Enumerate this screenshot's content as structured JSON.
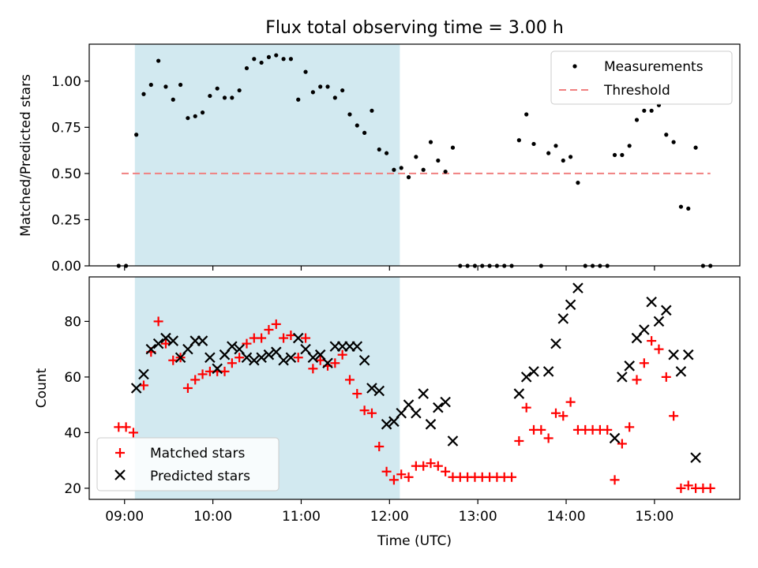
{
  "chart_data": [
    {
      "type": "scatter",
      "title": "Flux total observing time = 3.00 h",
      "xlabel": "",
      "ylabel": "Matched/Predicted stars",
      "xlim": [
        "08:36",
        "15:58"
      ],
      "ylim": [
        0,
        1.2
      ],
      "yticks": [
        0.0,
        0.25,
        0.5,
        0.75,
        1.0
      ],
      "ytick_labels": [
        "0.00",
        "0.25",
        "0.50",
        "0.75",
        "1.00"
      ],
      "shaded_span": [
        "09:07",
        "12:07"
      ],
      "shade_color": "#d2e9f0",
      "legend": {
        "position": "top-right",
        "entries": [
          "Measurements",
          "Threshold"
        ]
      },
      "threshold": {
        "name": "Threshold",
        "value": 0.5,
        "x_range": [
          "08:58",
          "15:38"
        ],
        "color": "#f08080"
      },
      "series": [
        {
          "name": "Measurements",
          "color": "#000000",
          "points": [
            [
              "08:56",
              0.0
            ],
            [
              "09:01",
              0.0
            ],
            [
              "09:08",
              0.71
            ],
            [
              "09:13",
              0.93
            ],
            [
              "09:18",
              0.98
            ],
            [
              "09:23",
              1.11
            ],
            [
              "09:28",
              0.97
            ],
            [
              "09:33",
              0.9
            ],
            [
              "09:38",
              0.98
            ],
            [
              "09:43",
              0.8
            ],
            [
              "09:48",
              0.81
            ],
            [
              "09:53",
              0.83
            ],
            [
              "09:58",
              0.92
            ],
            [
              "10:03",
              0.96
            ],
            [
              "10:08",
              0.91
            ],
            [
              "10:13",
              0.91
            ],
            [
              "10:18",
              0.95
            ],
            [
              "10:23",
              1.07
            ],
            [
              "10:28",
              1.12
            ],
            [
              "10:33",
              1.1
            ],
            [
              "10:38",
              1.13
            ],
            [
              "10:43",
              1.14
            ],
            [
              "10:48",
              1.12
            ],
            [
              "10:53",
              1.12
            ],
            [
              "10:58",
              0.9
            ],
            [
              "11:03",
              1.05
            ],
            [
              "11:08",
              0.94
            ],
            [
              "11:13",
              0.97
            ],
            [
              "11:18",
              0.97
            ],
            [
              "11:23",
              0.91
            ],
            [
              "11:28",
              0.95
            ],
            [
              "11:33",
              0.82
            ],
            [
              "11:38",
              0.76
            ],
            [
              "11:43",
              0.72
            ],
            [
              "11:48",
              0.84
            ],
            [
              "11:53",
              0.63
            ],
            [
              "11:58",
              0.61
            ],
            [
              "12:03",
              0.52
            ],
            [
              "12:08",
              0.53
            ],
            [
              "12:13",
              0.48
            ],
            [
              "12:18",
              0.59
            ],
            [
              "12:23",
              0.52
            ],
            [
              "12:28",
              0.67
            ],
            [
              "12:33",
              0.57
            ],
            [
              "12:38",
              0.51
            ],
            [
              "12:43",
              0.64
            ],
            [
              "12:48",
              0.0
            ],
            [
              "12:53",
              0.0
            ],
            [
              "12:58",
              0.0
            ],
            [
              "13:03",
              0.0
            ],
            [
              "13:08",
              0.0
            ],
            [
              "13:13",
              0.0
            ],
            [
              "13:18",
              0.0
            ],
            [
              "13:23",
              0.0
            ],
            [
              "13:28",
              0.68
            ],
            [
              "13:33",
              0.82
            ],
            [
              "13:38",
              0.66
            ],
            [
              "13:43",
              0.0
            ],
            [
              "13:48",
              0.61
            ],
            [
              "13:53",
              0.65
            ],
            [
              "13:58",
              0.57
            ],
            [
              "14:03",
              0.59
            ],
            [
              "14:08",
              0.45
            ],
            [
              "14:13",
              0.0
            ],
            [
              "14:18",
              0.0
            ],
            [
              "14:23",
              0.0
            ],
            [
              "14:28",
              0.0
            ],
            [
              "14:33",
              0.6
            ],
            [
              "14:38",
              0.6
            ],
            [
              "14:43",
              0.65
            ],
            [
              "14:48",
              0.79
            ],
            [
              "14:53",
              0.84
            ],
            [
              "14:58",
              0.84
            ],
            [
              "15:03",
              0.87
            ],
            [
              "15:08",
              0.71
            ],
            [
              "15:13",
              0.67
            ],
            [
              "15:18",
              0.32
            ],
            [
              "15:23",
              0.31
            ],
            [
              "15:28",
              0.64
            ],
            [
              "15:33",
              0.0
            ],
            [
              "15:38",
              0.0
            ]
          ]
        }
      ]
    },
    {
      "type": "scatter",
      "title": "",
      "xlabel": "Time (UTC)",
      "ylabel": "Count",
      "xlim": [
        "08:36",
        "15:58"
      ],
      "ylim": [
        16,
        96
      ],
      "yticks": [
        20,
        40,
        60,
        80
      ],
      "ytick_labels": [
        "20",
        "40",
        "60",
        "80"
      ],
      "xticks": [
        "09:00",
        "10:00",
        "11:00",
        "12:00",
        "13:00",
        "14:00",
        "15:00"
      ],
      "xtick_labels": [
        "09:00",
        "10:00",
        "11:00",
        "12:00",
        "13:00",
        "14:00",
        "15:00"
      ],
      "shaded_span": [
        "09:07",
        "12:07"
      ],
      "legend": {
        "position": "bottom-left",
        "entries": [
          "Matched stars",
          "Predicted stars"
        ]
      },
      "series": [
        {
          "name": "Matched stars",
          "marker": "plus",
          "color": "#ff0000",
          "points": [
            [
              "08:56",
              42
            ],
            [
              "09:01",
              42
            ],
            [
              "09:06",
              40
            ],
            [
              "09:13",
              57
            ],
            [
              "09:18",
              69
            ],
            [
              "09:23",
              80
            ],
            [
              "09:28",
              72
            ],
            [
              "09:33",
              66
            ],
            [
              "09:38",
              67
            ],
            [
              "09:43",
              56
            ],
            [
              "09:48",
              59
            ],
            [
              "09:53",
              61
            ],
            [
              "09:58",
              62
            ],
            [
              "10:03",
              62
            ],
            [
              "10:08",
              62
            ],
            [
              "10:13",
              65
            ],
            [
              "10:18",
              67
            ],
            [
              "10:23",
              72
            ],
            [
              "10:28",
              74
            ],
            [
              "10:33",
              74
            ],
            [
              "10:38",
              77
            ],
            [
              "10:43",
              79
            ],
            [
              "10:48",
              74
            ],
            [
              "10:53",
              75
            ],
            [
              "10:58",
              67
            ],
            [
              "11:03",
              74
            ],
            [
              "11:08",
              63
            ],
            [
              "11:13",
              66
            ],
            [
              "11:18",
              64
            ],
            [
              "11:23",
              65
            ],
            [
              "11:28",
              68
            ],
            [
              "11:33",
              59
            ],
            [
              "11:38",
              54
            ],
            [
              "11:43",
              48
            ],
            [
              "11:48",
              47
            ],
            [
              "11:53",
              35
            ],
            [
              "11:58",
              26
            ],
            [
              "12:03",
              23
            ],
            [
              "12:08",
              25
            ],
            [
              "12:13",
              24
            ],
            [
              "12:18",
              28
            ],
            [
              "12:23",
              28
            ],
            [
              "12:28",
              29
            ],
            [
              "12:33",
              28
            ],
            [
              "12:38",
              26
            ],
            [
              "12:43",
              24
            ],
            [
              "12:48",
              24
            ],
            [
              "12:53",
              24
            ],
            [
              "12:58",
              24
            ],
            [
              "13:03",
              24
            ],
            [
              "13:08",
              24
            ],
            [
              "13:13",
              24
            ],
            [
              "13:18",
              24
            ],
            [
              "13:23",
              24
            ],
            [
              "13:28",
              37
            ],
            [
              "13:33",
              49
            ],
            [
              "13:38",
              41
            ],
            [
              "13:43",
              41
            ],
            [
              "13:48",
              38
            ],
            [
              "13:53",
              47
            ],
            [
              "13:58",
              46
            ],
            [
              "14:03",
              51
            ],
            [
              "14:08",
              41
            ],
            [
              "14:13",
              41
            ],
            [
              "14:18",
              41
            ],
            [
              "14:23",
              41
            ],
            [
              "14:28",
              41
            ],
            [
              "14:33",
              23
            ],
            [
              "14:38",
              36
            ],
            [
              "14:43",
              42
            ],
            [
              "14:48",
              59
            ],
            [
              "14:53",
              65
            ],
            [
              "14:58",
              73
            ],
            [
              "15:03",
              70
            ],
            [
              "15:08",
              60
            ],
            [
              "15:13",
              46
            ],
            [
              "15:18",
              20
            ],
            [
              "15:23",
              21
            ],
            [
              "15:28",
              20
            ],
            [
              "15:33",
              20
            ],
            [
              "15:38",
              20
            ]
          ]
        },
        {
          "name": "Predicted stars",
          "marker": "x",
          "color": "#000000",
          "points": [
            [
              "09:08",
              56
            ],
            [
              "09:13",
              61
            ],
            [
              "09:18",
              70
            ],
            [
              "09:23",
              72
            ],
            [
              "09:28",
              74
            ],
            [
              "09:33",
              73
            ],
            [
              "09:38",
              67
            ],
            [
              "09:43",
              70
            ],
            [
              "09:48",
              73
            ],
            [
              "09:53",
              73
            ],
            [
              "09:58",
              67
            ],
            [
              "10:03",
              63
            ],
            [
              "10:08",
              68
            ],
            [
              "10:13",
              71
            ],
            [
              "10:18",
              70
            ],
            [
              "10:23",
              67
            ],
            [
              "10:28",
              66
            ],
            [
              "10:33",
              67
            ],
            [
              "10:38",
              68
            ],
            [
              "10:43",
              69
            ],
            [
              "10:48",
              66
            ],
            [
              "10:53",
              67
            ],
            [
              "10:58",
              74
            ],
            [
              "11:03",
              70
            ],
            [
              "11:08",
              67
            ],
            [
              "11:13",
              68
            ],
            [
              "11:18",
              65
            ],
            [
              "11:23",
              71
            ],
            [
              "11:28",
              71
            ],
            [
              "11:33",
              71
            ],
            [
              "11:38",
              71
            ],
            [
              "11:43",
              66
            ],
            [
              "11:48",
              56
            ],
            [
              "11:53",
              55
            ],
            [
              "11:58",
              43
            ],
            [
              "12:03",
              44
            ],
            [
              "12:08",
              47
            ],
            [
              "12:13",
              50
            ],
            [
              "12:18",
              47
            ],
            [
              "12:23",
              54
            ],
            [
              "12:28",
              43
            ],
            [
              "12:33",
              49
            ],
            [
              "12:38",
              51
            ],
            [
              "12:43",
              37
            ],
            [
              "13:28",
              54
            ],
            [
              "13:33",
              60
            ],
            [
              "13:38",
              62
            ],
            [
              "13:48",
              62
            ],
            [
              "13:53",
              72
            ],
            [
              "13:58",
              81
            ],
            [
              "14:03",
              86
            ],
            [
              "14:08",
              92
            ],
            [
              "14:33",
              38
            ],
            [
              "14:38",
              60
            ],
            [
              "14:43",
              64
            ],
            [
              "14:48",
              74
            ],
            [
              "14:53",
              77
            ],
            [
              "14:58",
              87
            ],
            [
              "15:03",
              80
            ],
            [
              "15:08",
              84
            ],
            [
              "15:13",
              68
            ],
            [
              "15:18",
              62
            ],
            [
              "15:23",
              68
            ],
            [
              "15:28",
              31
            ]
          ]
        }
      ]
    }
  ]
}
